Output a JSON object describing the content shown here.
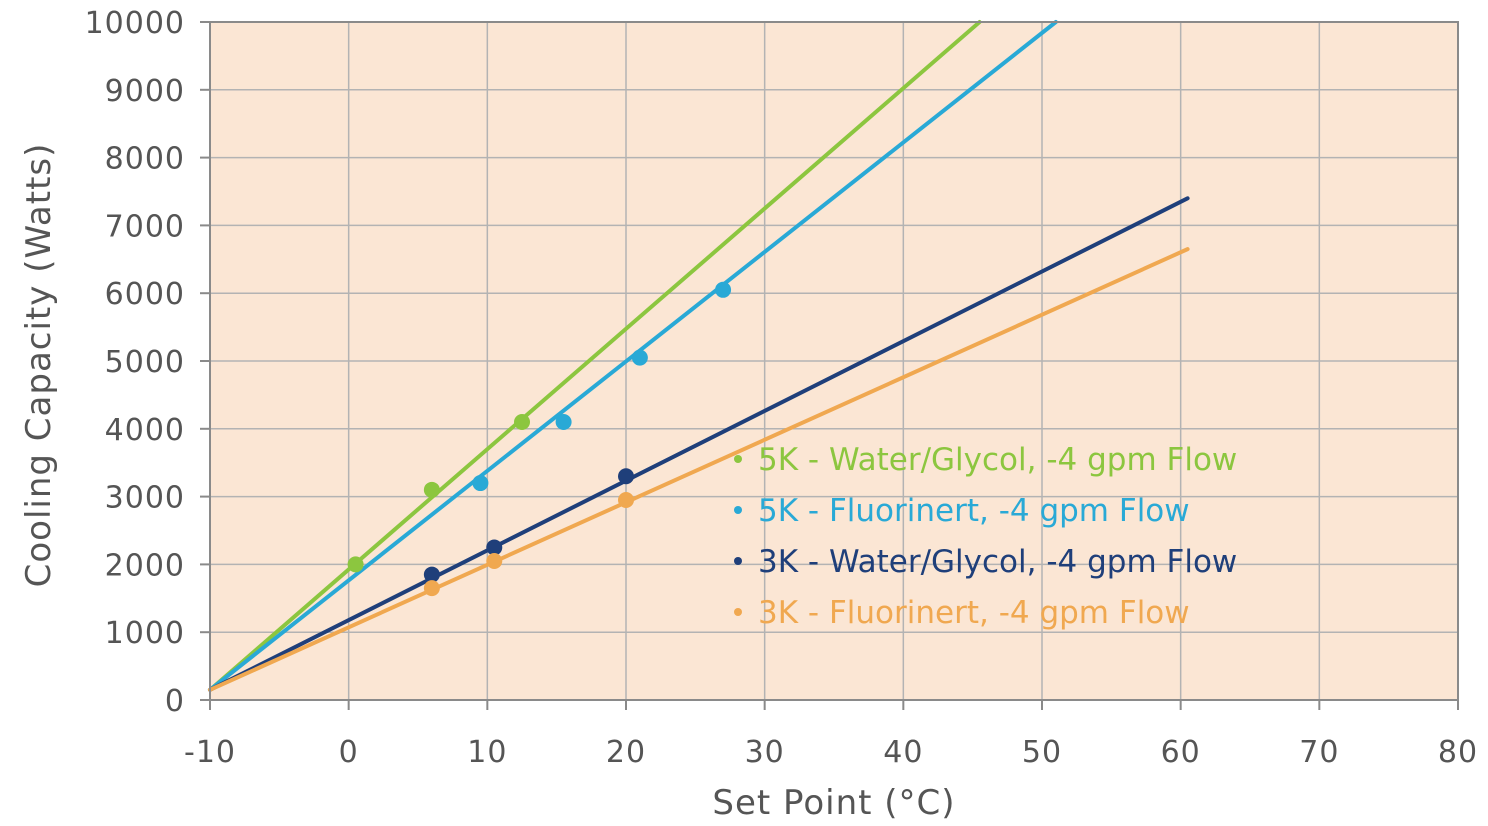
{
  "chart_data": {
    "type": "line",
    "title": "",
    "xlabel": "Set Point (°C)",
    "ylabel": "Cooling Capacity (Watts)",
    "xlim": [
      -10,
      80
    ],
    "ylim": [
      0,
      10000
    ],
    "x_ticks": [
      -10,
      0,
      10,
      20,
      30,
      40,
      50,
      60,
      70,
      80
    ],
    "y_ticks": [
      0,
      1000,
      2000,
      3000,
      4000,
      5000,
      6000,
      7000,
      8000,
      9000,
      10000
    ],
    "grid": true,
    "legend_position": "right-center",
    "background_color": "#fbe6d4",
    "series": [
      {
        "name": "5K - Water/Glycol, -4 gpm Flow",
        "color": "#8cc63f",
        "line": [
          [
            -10,
            150
          ],
          [
            45.5,
            10000
          ]
        ],
        "points": [
          [
            0.5,
            2000
          ],
          [
            6,
            3100
          ],
          [
            12.5,
            4100
          ]
        ]
      },
      {
        "name": "5K - Fluorinert, -4 gpm Flow",
        "color": "#29a9d6",
        "line": [
          [
            -10,
            150
          ],
          [
            51,
            10000
          ]
        ],
        "points": [
          [
            9.5,
            3200
          ],
          [
            15.5,
            4100
          ],
          [
            21,
            5050
          ],
          [
            27,
            6050
          ]
        ]
      },
      {
        "name": "3K - Water/Glycol, -4 gpm Flow",
        "color": "#1f3f7a",
        "line": [
          [
            -10,
            150
          ],
          [
            60.5,
            7400
          ]
        ],
        "points": [
          [
            6,
            1850
          ],
          [
            10.5,
            2250
          ],
          [
            20,
            3300
          ]
        ]
      },
      {
        "name": "3K - Fluorinert, -4 gpm Flow",
        "color": "#f0a850",
        "line": [
          [
            -10,
            150
          ],
          [
            60.5,
            6650
          ]
        ],
        "points": [
          [
            6,
            1650
          ],
          [
            10.5,
            2050
          ],
          [
            20,
            2950
          ]
        ]
      }
    ]
  }
}
